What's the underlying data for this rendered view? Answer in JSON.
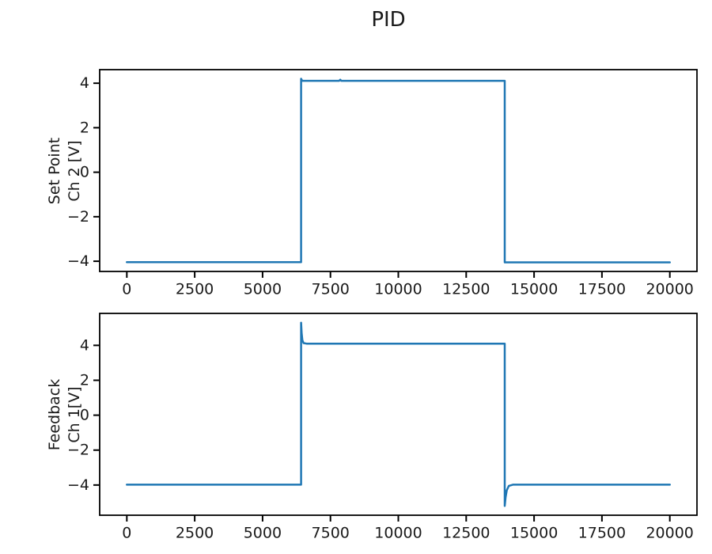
{
  "figure": {
    "title": "PID",
    "background": "#ffffff",
    "text_color": "#1a1a1a",
    "spine_color": "#000000"
  },
  "chart_data": [
    {
      "type": "line",
      "title": "",
      "xlabel": "",
      "ylabel": "Set Point\nCh 2 [V]",
      "grid": false,
      "legend_position": "none",
      "xlim": [
        -1000,
        21000
      ],
      "ylim": [
        -4.46,
        4.61
      ],
      "xticks": [
        0,
        2500,
        5000,
        7500,
        10000,
        12500,
        15000,
        17500,
        20000
      ],
      "yticks": [
        -4,
        -2,
        0,
        2,
        4
      ],
      "series": [
        {
          "name": "set-point",
          "color": "#1f77b4",
          "points": [
            [
              0,
              -4.04
            ],
            [
              6420,
              -4.04
            ],
            [
              6420,
              4.2
            ],
            [
              6460,
              4.11
            ],
            [
              7820,
              4.11
            ],
            [
              7860,
              4.16
            ],
            [
              7900,
              4.11
            ],
            [
              13920,
              4.11
            ],
            [
              13920,
              -4.05
            ],
            [
              20000,
              -4.05
            ]
          ]
        }
      ]
    },
    {
      "type": "line",
      "title": "",
      "xlabel": "",
      "ylabel": "Feedback\nCh 1[V]",
      "grid": false,
      "legend_position": "none",
      "xlim": [
        -1000,
        21000
      ],
      "ylim": [
        -5.73,
        5.83
      ],
      "xticks": [
        0,
        2500,
        5000,
        7500,
        10000,
        12500,
        15000,
        17500,
        20000
      ],
      "yticks": [
        -4,
        -2,
        0,
        2,
        4
      ],
      "series": [
        {
          "name": "feedback",
          "color": "#1f77b4",
          "points": [
            [
              0,
              -3.98
            ],
            [
              6420,
              -3.98
            ],
            [
              6420,
              5.3
            ],
            [
              6440,
              4.7
            ],
            [
              6465,
              4.3
            ],
            [
              6510,
              4.13
            ],
            [
              6620,
              4.1
            ],
            [
              13920,
              4.1
            ],
            [
              13920,
              -5.2
            ],
            [
              13950,
              -4.7
            ],
            [
              13995,
              -4.3
            ],
            [
              14070,
              -4.05
            ],
            [
              14220,
              -3.98
            ],
            [
              20000,
              -3.98
            ]
          ]
        }
      ]
    }
  ]
}
